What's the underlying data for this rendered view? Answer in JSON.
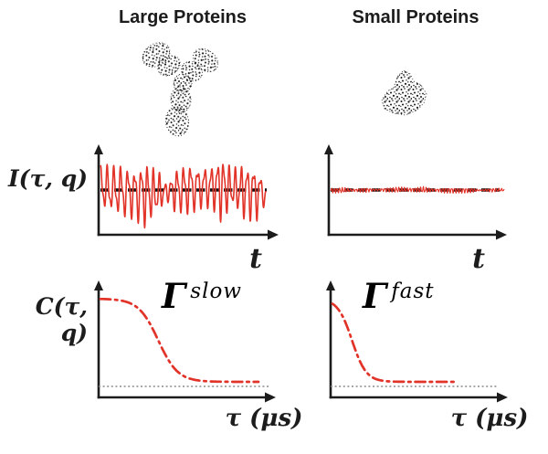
{
  "figure": {
    "columns": [
      {
        "title": "Large Proteins",
        "protein_icon": "antibody-y-protein",
        "decay_symbol": "Γ",
        "decay_rate": "slow"
      },
      {
        "title": "Small Proteins",
        "protein_icon": "compact-globular-protein",
        "decay_symbol": "Γ",
        "decay_rate": "fast"
      }
    ],
    "intensity_axis_label": "I(τ, q)",
    "intensity_x_label": "t",
    "correlation_axis_label": "C(τ, q)",
    "correlation_x_label": "τ (μs)"
  },
  "palette": {
    "signal_red": "#e23329",
    "axis_black": "#1c1c1c",
    "baseline_gray": "#8a8a8a"
  },
  "chart_data": [
    {
      "id": "intensity-large",
      "type": "line",
      "panel": "Large Proteins",
      "ylabel": "I(τ, q)",
      "xlabel": "t",
      "description": "scattered-intensity time trace with slow, large-amplitude fluctuations about a dashed mean line",
      "color": "#e23329",
      "gen": {
        "kind": "noise",
        "seed": 11,
        "frequency": 26,
        "amplitude": 1.0
      }
    },
    {
      "id": "intensity-small",
      "type": "line",
      "panel": "Small Proteins",
      "ylabel": "I(τ, q)",
      "xlabel": "t",
      "description": "scattered-intensity time trace with fast, small-amplitude fluctuations about a dashed mean line",
      "color": "#e23329",
      "gen": {
        "kind": "noise",
        "seed": 5,
        "frequency": 62,
        "amplitude": 0.3
      }
    },
    {
      "id": "correlation-large",
      "type": "line",
      "panel": "Large Proteins",
      "ylabel": "C(τ, q)",
      "xlabel": "τ (μs)",
      "annotation": "Γ slow",
      "description": "autocorrelation function, sigmoidal decay at long lag times (dash-dot curve) above a dotted baseline",
      "color": "#e23329",
      "gen": {
        "kind": "sigmoid",
        "midpoint": 0.34,
        "width": 0.058,
        "tail_end": 0.93
      }
    },
    {
      "id": "correlation-small",
      "type": "line",
      "panel": "Small Proteins",
      "ylabel": "C(τ, q)",
      "xlabel": "τ (μs)",
      "annotation": "Γ fast",
      "description": "autocorrelation function, sigmoidal decay at short lag times (dash-dot curve) above a dotted baseline",
      "color": "#e23329",
      "gen": {
        "kind": "sigmoid",
        "midpoint": 0.115,
        "width": 0.042,
        "tail_end": 0.74
      }
    }
  ]
}
